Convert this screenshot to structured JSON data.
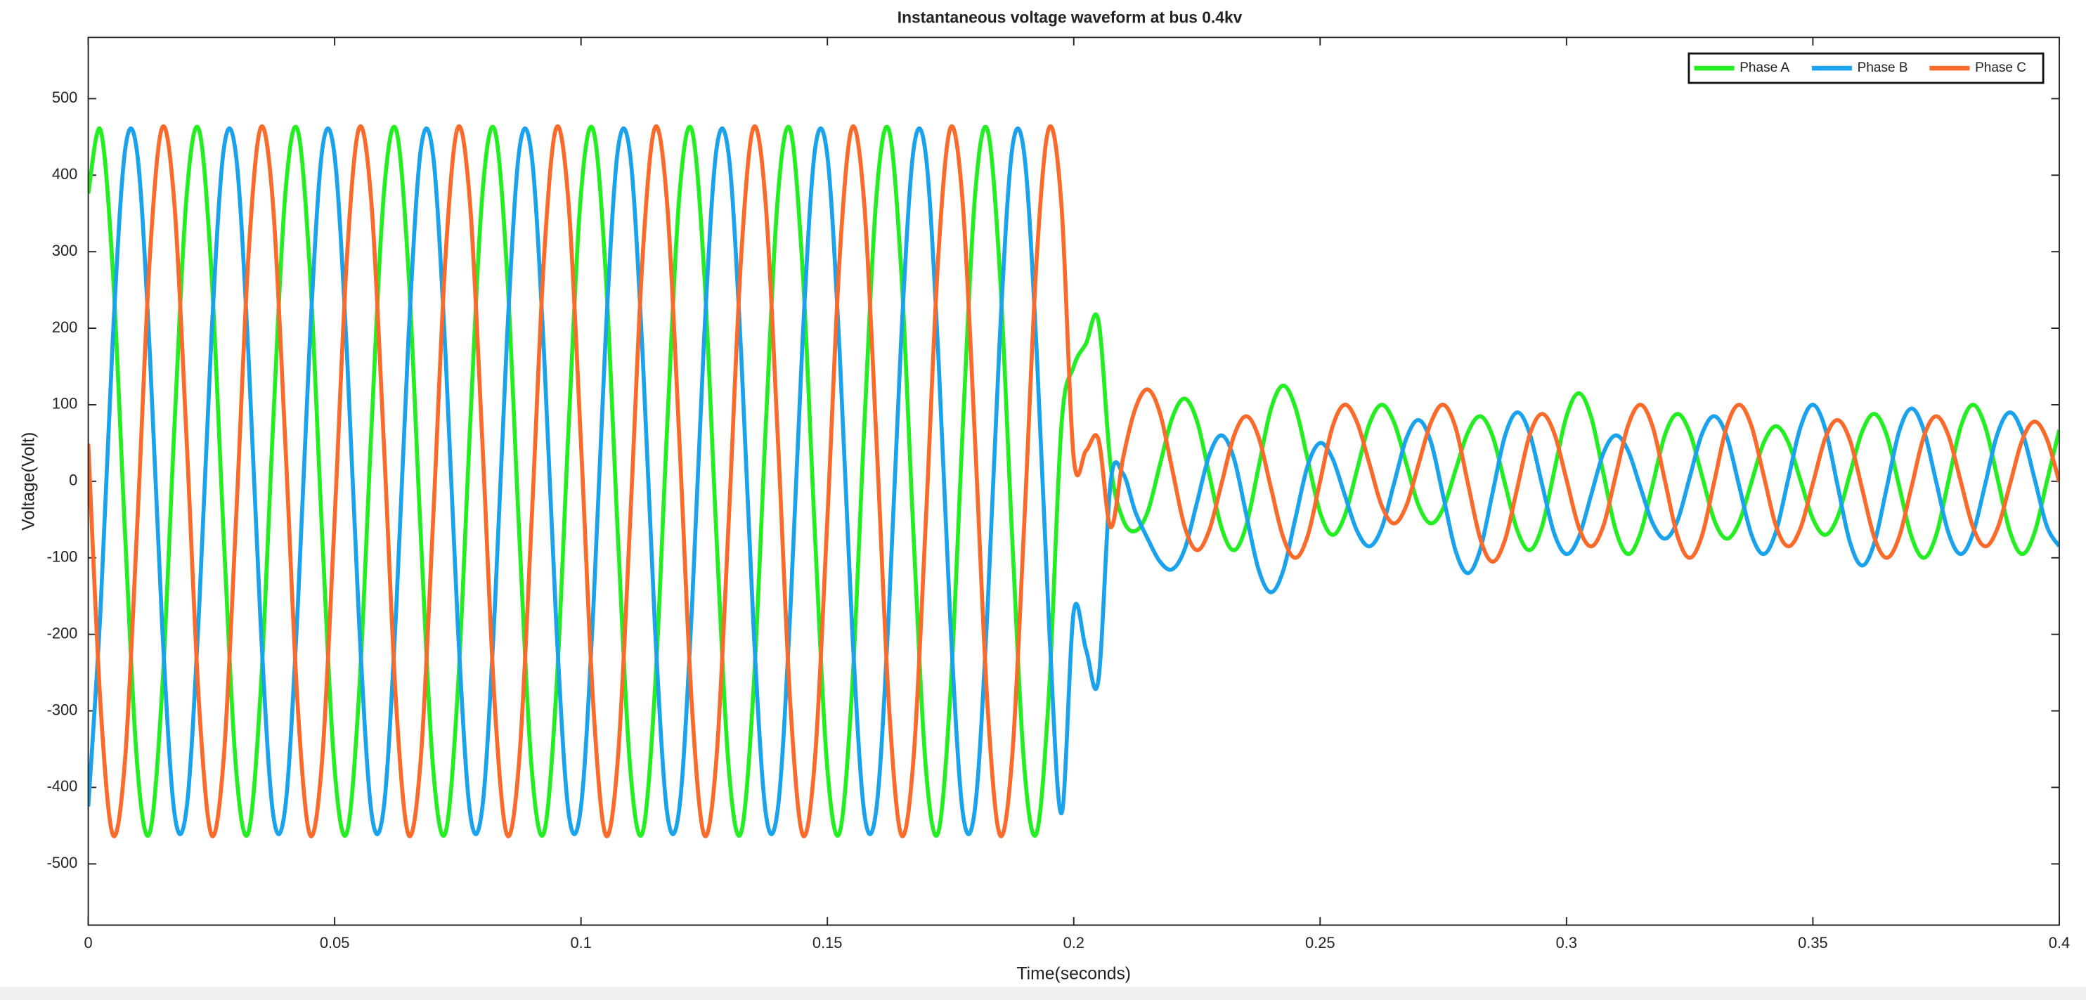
{
  "chart_data": {
    "type": "line",
    "title": "Instantaneous voltage waveform at bus 0.4kv",
    "x_label": "Time(seconds)",
    "y_label": "Voltage(Volt)",
    "xlim": [
      0,
      0.4
    ],
    "xticks": [
      0,
      0.05,
      0.1,
      0.15,
      0.2,
      0.25,
      0.3,
      0.35,
      0.4
    ],
    "ylim": [
      -580,
      580
    ],
    "yticks": [
      -500,
      -400,
      -300,
      -200,
      -100,
      0,
      100,
      200,
      300,
      400,
      500
    ],
    "legend": "upper right",
    "x": [
      0,
      0.0025,
      0.005,
      0.0075,
      0.01,
      0.0125,
      0.015,
      0.0175,
      0.02,
      0.0225,
      0.025,
      0.0275,
      0.03,
      0.0325,
      0.035,
      0.0375,
      0.04,
      0.0425,
      0.045,
      0.0475,
      0.05,
      0.0525,
      0.055,
      0.0575,
      0.06,
      0.0625,
      0.065,
      0.0675,
      0.07,
      0.0725,
      0.075,
      0.0775,
      0.08,
      0.0825,
      0.085,
      0.0875,
      0.09,
      0.0925,
      0.095,
      0.0975,
      0.1,
      0.1025,
      0.105,
      0.1075,
      0.11,
      0.1125,
      0.115,
      0.1175,
      0.12,
      0.1225,
      0.125,
      0.1275,
      0.13,
      0.1325,
      0.135,
      0.1375,
      0.14,
      0.1425,
      0.145,
      0.1475,
      0.15,
      0.1525,
      0.155,
      0.1575,
      0.16,
      0.1625,
      0.165,
      0.1675,
      0.17,
      0.1725,
      0.175,
      0.1775,
      0.18,
      0.1825,
      0.185,
      0.1875,
      0.19,
      0.1925,
      0.195,
      0.1975,
      0.2,
      0.2025,
      0.205,
      0.2075,
      0.21,
      0.2125,
      0.215,
      0.2175,
      0.22,
      0.2225,
      0.225,
      0.2275,
      0.23,
      0.2325,
      0.235,
      0.2375,
      0.24,
      0.2425,
      0.245,
      0.2475,
      0.25,
      0.2525,
      0.255,
      0.2575,
      0.26,
      0.2625,
      0.265,
      0.2675,
      0.27,
      0.2725,
      0.275,
      0.2775,
      0.28,
      0.2825,
      0.285,
      0.2875,
      0.29,
      0.2925,
      0.295,
      0.2975,
      0.3,
      0.3025,
      0.305,
      0.3075,
      0.31,
      0.3125,
      0.315,
      0.3175,
      0.32,
      0.3225,
      0.325,
      0.3275,
      0.33,
      0.3325,
      0.335,
      0.3375,
      0.34,
      0.3425,
      0.345,
      0.3475,
      0.35,
      0.3525,
      0.355,
      0.3575,
      0.36,
      0.3625,
      0.365,
      0.3675,
      0.37,
      0.3725,
      0.375,
      0.3775,
      0.38,
      0.3825,
      0.385,
      0.3875,
      0.39,
      0.3925,
      0.395,
      0.3975,
      0.4
    ],
    "series": [
      {
        "name": "Phase A",
        "color": "#22ee22",
        "values": [
          376,
          459,
          273,
          -73,
          -376,
          -459,
          -273,
          73,
          376,
          459,
          273,
          -73,
          -376,
          -459,
          -273,
          73,
          376,
          459,
          273,
          -73,
          -376,
          -459,
          -273,
          73,
          376,
          459,
          273,
          -73,
          -376,
          -459,
          -273,
          73,
          376,
          459,
          273,
          -73,
          -376,
          -459,
          -273,
          73,
          376,
          459,
          273,
          -73,
          -376,
          -459,
          -273,
          73,
          376,
          459,
          273,
          -73,
          -376,
          -459,
          -273,
          73,
          376,
          459,
          273,
          -73,
          -376,
          -459,
          -273,
          73,
          376,
          459,
          273,
          -73,
          -376,
          -459,
          -273,
          73,
          376,
          459,
          273,
          -73,
          -376,
          -459,
          -273,
          73,
          150,
          180,
          210,
          20,
          -50,
          -65,
          -40,
          22,
          83,
          108,
          79,
          9,
          -61,
          -90,
          -58,
          18,
          94,
          125,
          96,
          28,
          -41,
          -70,
          -45,
          15,
          75,
          100,
          77,
          23,
          -32,
          -55,
          -35,
          15,
          64,
          85,
          59,
          -3,
          -64,
          -90,
          -60,
          13,
          85,
          115,
          84,
          10,
          -64,
          -95,
          -68,
          -4,
          61,
          88,
          64,
          7,
          -51,
          -75,
          -54,
          -2,
          50,
          72,
          51,
          1,
          -49,
          -70,
          -47,
          9,
          65,
          88,
          60,
          -6,
          -72,
          -100,
          -71,
          0,
          71,
          100,
          71,
          3,
          -66,
          -95,
          -67,
          0,
          67
        ]
      },
      {
        "name": "Phase B",
        "color": "#1aa3ec",
        "values": [
          -425,
          -167,
          189,
          434,
          425,
          167,
          -189,
          -434,
          -425,
          -167,
          189,
          434,
          425,
          167,
          -189,
          -434,
          -425,
          -167,
          189,
          434,
          425,
          167,
          -189,
          -434,
          -425,
          -167,
          189,
          434,
          425,
          167,
          -189,
          -434,
          -425,
          -167,
          189,
          434,
          425,
          167,
          -189,
          -434,
          -425,
          -167,
          189,
          434,
          425,
          167,
          -189,
          -434,
          -425,
          -167,
          189,
          434,
          425,
          167,
          -189,
          -434,
          -425,
          -167,
          189,
          434,
          425,
          167,
          -189,
          -434,
          -425,
          -167,
          189,
          434,
          425,
          167,
          -189,
          -434,
          -425,
          -167,
          189,
          434,
          425,
          167,
          -189,
          -434,
          -170,
          -220,
          -260,
          0,
          10,
          -40,
          -75,
          -105,
          -115,
          -89,
          -28,
          34,
          60,
          30,
          -43,
          -115,
          -145,
          -117,
          -48,
          21,
          50,
          30,
          -18,
          -65,
          -85,
          -61,
          -3,
          56,
          80,
          51,
          -20,
          -91,
          -120,
          -89,
          -15,
          59,
          90,
          63,
          -3,
          -68,
          -95,
          -73,
          -18,
          37,
          60,
          40,
          -8,
          -55,
          -75,
          -52,
          5,
          62,
          85,
          59,
          -5,
          -69,
          -95,
          -66,
          3,
          71,
          100,
          69,
          -5,
          -79,
          -110,
          -80,
          -8,
          65,
          95,
          67,
          0,
          -67,
          -95,
          -68,
          -3,
          63,
          90,
          64,
          3,
          -59,
          -85
        ]
      },
      {
        "name": "Phase C",
        "color": "#fa6a2a",
        "values": [
          49,
          -293,
          -462,
          -361,
          -49,
          293,
          462,
          361,
          49,
          -293,
          -462,
          -361,
          -49,
          293,
          462,
          361,
          49,
          -293,
          -462,
          -361,
          -49,
          293,
          462,
          361,
          49,
          -293,
          -462,
          -361,
          -49,
          293,
          462,
          361,
          49,
          -293,
          -462,
          -361,
          -49,
          293,
          462,
          361,
          49,
          -293,
          -462,
          -361,
          -49,
          293,
          462,
          361,
          49,
          -293,
          -462,
          -361,
          -49,
          293,
          462,
          361,
          49,
          -293,
          -462,
          -361,
          -49,
          293,
          462,
          361,
          49,
          -293,
          -462,
          -361,
          -49,
          293,
          462,
          361,
          49,
          -293,
          -462,
          -361,
          -49,
          293,
          462,
          361,
          30,
          40,
          55,
          -60,
          30,
          95,
          120,
          89,
          15,
          -59,
          -90,
          -64,
          -3,
          59,
          85,
          58,
          -8,
          -73,
          -100,
          -71,
          0,
          71,
          100,
          77,
          23,
          -32,
          -55,
          -32,
          23,
          77,
          100,
          70,
          -3,
          -75,
          -105,
          -77,
          -9,
          60,
          88,
          63,
          2,
          -60,
          -85,
          -58,
          8,
          73,
          100,
          71,
          0,
          -71,
          -100,
          -71,
          0,
          71,
          100,
          73,
          8,
          -58,
          -85,
          -61,
          -3,
          56,
          80,
          54,
          -10,
          -74,
          -100,
          -73,
          -8,
          58,
          85,
          60,
          0,
          -60,
          -85,
          -61,
          -4,
          54,
          78,
          55,
          -1
        ]
      }
    ]
  }
}
